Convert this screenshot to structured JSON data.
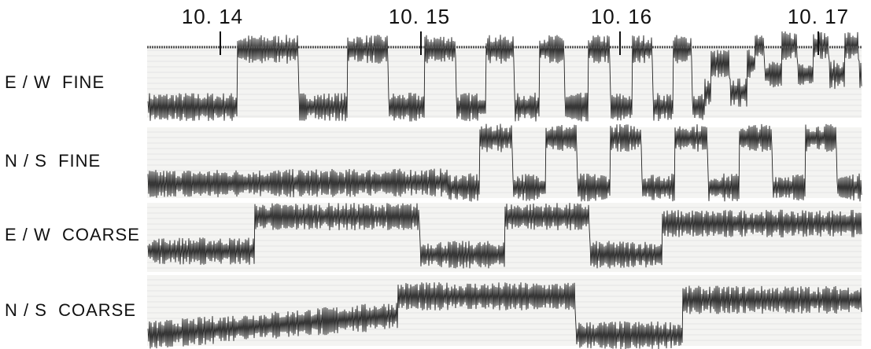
{
  "time_marks": [
    "10. 14",
    "10. 15",
    "10. 16",
    "10. 17"
  ],
  "channels": [
    "E / W  FINE",
    "N / S  FINE",
    "E / W  COARSE",
    "N / S  COARSE"
  ]
}
